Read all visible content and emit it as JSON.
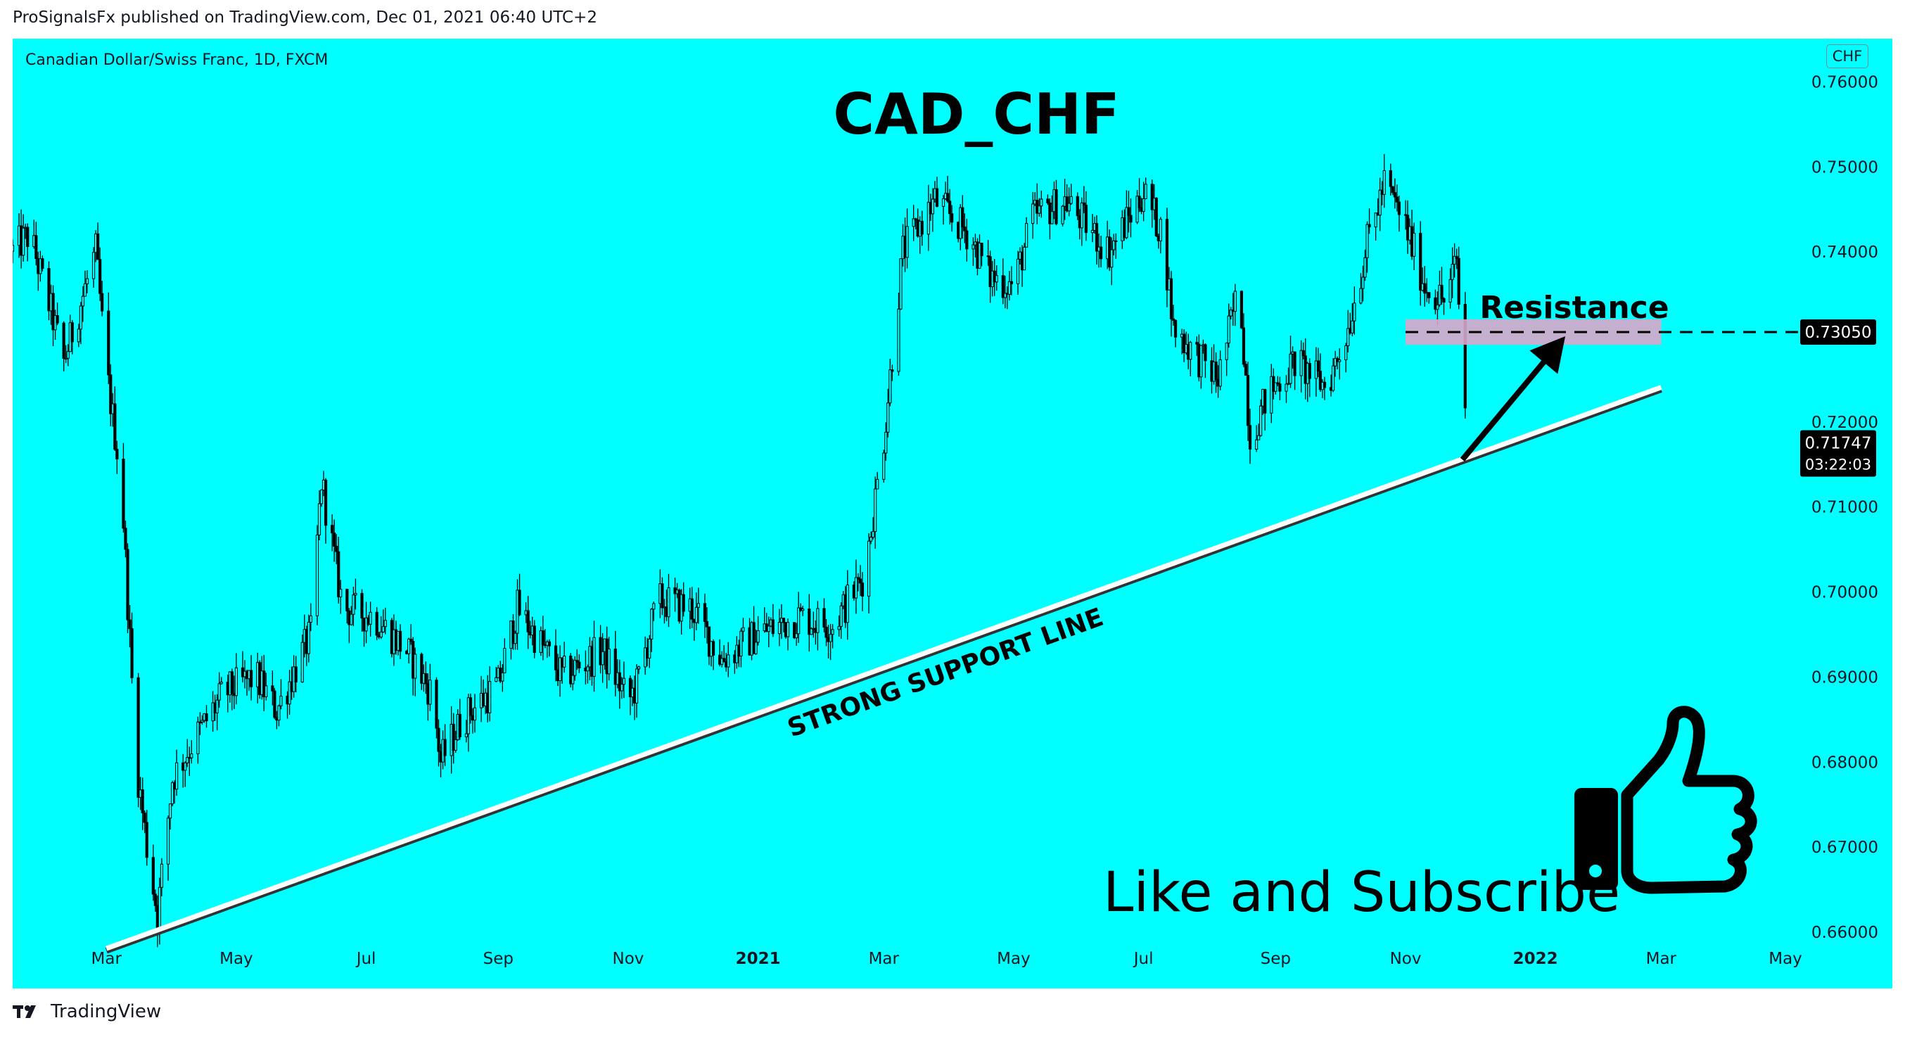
{
  "header": {
    "attribution": "ProSignalsFx published on TradingView.com, Dec 01, 2021 06:40 UTC+2"
  },
  "chart": {
    "symbol_title": "Canadian Dollar/Swiss Franc, 1D, FXCM",
    "currency_badge": "CHF",
    "background_color": "#00ffff"
  },
  "footer": {
    "brand": "TradingView",
    "logo_icon": "tradingview-logo-icon"
  },
  "chart_data": {
    "type": "candlestick",
    "title": "CAD_CHF",
    "annotations": {
      "support_label": "STRONG SUPPORT LINE",
      "resistance_label": "Resistance",
      "cta_text": "Like and Subscribe",
      "cta_icon": "thumbs-up-icon"
    },
    "y_axis": {
      "ylim": [
        0.6533,
        0.765
      ],
      "ticks": [
        0.76,
        0.75,
        0.74,
        0.72,
        0.71,
        0.7,
        0.69,
        0.68,
        0.67,
        0.66
      ],
      "tick_labels": [
        "0.76000",
        "0.75000",
        "0.74000",
        "0.72000",
        "0.71000",
        "0.70000",
        "0.69000",
        "0.68000",
        "0.67000",
        "0.66000"
      ],
      "position": "right"
    },
    "x_axis": {
      "range": [
        "2020-01-17",
        "2022-05-01"
      ],
      "ticks": [
        {
          "date": "2020-03-01",
          "label": "Mar",
          "bold": false
        },
        {
          "date": "2020-05-01",
          "label": "May",
          "bold": false
        },
        {
          "date": "2020-07-01",
          "label": "Jul",
          "bold": false
        },
        {
          "date": "2020-09-01",
          "label": "Sep",
          "bold": false
        },
        {
          "date": "2020-11-01",
          "label": "Nov",
          "bold": false
        },
        {
          "date": "2021-01-01",
          "label": "2021",
          "bold": true
        },
        {
          "date": "2021-03-01",
          "label": "Mar",
          "bold": false
        },
        {
          "date": "2021-05-01",
          "label": "May",
          "bold": false
        },
        {
          "date": "2021-07-01",
          "label": "Jul",
          "bold": false
        },
        {
          "date": "2021-09-01",
          "label": "Sep",
          "bold": false
        },
        {
          "date": "2021-11-01",
          "label": "Nov",
          "bold": false
        },
        {
          "date": "2022-01-01",
          "label": "2022",
          "bold": true
        },
        {
          "date": "2022-03-01",
          "label": "Mar",
          "bold": false
        },
        {
          "date": "2022-05-01",
          "label": "May",
          "bold": false
        }
      ]
    },
    "price_path": [
      {
        "date": "2020-01-17",
        "price": 0.74
      },
      {
        "date": "2020-01-25",
        "price": 0.742
      },
      {
        "date": "2020-02-05",
        "price": 0.732
      },
      {
        "date": "2020-02-10",
        "price": 0.727
      },
      {
        "date": "2020-02-25",
        "price": 0.74
      },
      {
        "date": "2020-03-01",
        "price": 0.726
      },
      {
        "date": "2020-03-08",
        "price": 0.713
      },
      {
        "date": "2020-03-15",
        "price": 0.68
      },
      {
        "date": "2020-03-20",
        "price": 0.67
      },
      {
        "date": "2020-03-25",
        "price": 0.662
      },
      {
        "date": "2020-04-01",
        "price": 0.678
      },
      {
        "date": "2020-04-10",
        "price": 0.682
      },
      {
        "date": "2020-04-25",
        "price": 0.688
      },
      {
        "date": "2020-05-10",
        "price": 0.69
      },
      {
        "date": "2020-05-20",
        "price": 0.686
      },
      {
        "date": "2020-06-05",
        "price": 0.695
      },
      {
        "date": "2020-06-10",
        "price": 0.713
      },
      {
        "date": "2020-06-20",
        "price": 0.698
      },
      {
        "date": "2020-07-05",
        "price": 0.697
      },
      {
        "date": "2020-07-20",
        "price": 0.693
      },
      {
        "date": "2020-08-01",
        "price": 0.688
      },
      {
        "date": "2020-08-05",
        "price": 0.68
      },
      {
        "date": "2020-08-15",
        "price": 0.685
      },
      {
        "date": "2020-09-01",
        "price": 0.689
      },
      {
        "date": "2020-09-10",
        "price": 0.698
      },
      {
        "date": "2020-10-01",
        "price": 0.69
      },
      {
        "date": "2020-10-20",
        "price": 0.693
      },
      {
        "date": "2020-11-01",
        "price": 0.687
      },
      {
        "date": "2020-11-05",
        "price": 0.689
      },
      {
        "date": "2020-11-15",
        "price": 0.699
      },
      {
        "date": "2020-12-01",
        "price": 0.698
      },
      {
        "date": "2020-12-15",
        "price": 0.692
      },
      {
        "date": "2021-01-01",
        "price": 0.695
      },
      {
        "date": "2021-01-20",
        "price": 0.697
      },
      {
        "date": "2021-02-05",
        "price": 0.696
      },
      {
        "date": "2021-02-20",
        "price": 0.702
      },
      {
        "date": "2021-03-01",
        "price": 0.718
      },
      {
        "date": "2021-03-10",
        "price": 0.74
      },
      {
        "date": "2021-03-25",
        "price": 0.746
      },
      {
        "date": "2021-04-10",
        "price": 0.742
      },
      {
        "date": "2021-04-20",
        "price": 0.737
      },
      {
        "date": "2021-05-01",
        "price": 0.736
      },
      {
        "date": "2021-05-10",
        "price": 0.744
      },
      {
        "date": "2021-05-25",
        "price": 0.746
      },
      {
        "date": "2021-06-15",
        "price": 0.74
      },
      {
        "date": "2021-07-01",
        "price": 0.747
      },
      {
        "date": "2021-07-10",
        "price": 0.742
      },
      {
        "date": "2021-07-15",
        "price": 0.731
      },
      {
        "date": "2021-07-25",
        "price": 0.728
      },
      {
        "date": "2021-08-05",
        "price": 0.725
      },
      {
        "date": "2021-08-15",
        "price": 0.736
      },
      {
        "date": "2021-08-20",
        "price": 0.718
      },
      {
        "date": "2021-08-28",
        "price": 0.723
      },
      {
        "date": "2021-09-10",
        "price": 0.727
      },
      {
        "date": "2021-09-25",
        "price": 0.724
      },
      {
        "date": "2021-10-05",
        "price": 0.731
      },
      {
        "date": "2021-10-15",
        "price": 0.742
      },
      {
        "date": "2021-10-22",
        "price": 0.748
      },
      {
        "date": "2021-11-01",
        "price": 0.743
      },
      {
        "date": "2021-11-10",
        "price": 0.736
      },
      {
        "date": "2021-11-20",
        "price": 0.734
      },
      {
        "date": "2021-11-25",
        "price": 0.739
      },
      {
        "date": "2021-11-27",
        "price": 0.729
      },
      {
        "date": "2021-11-30",
        "price": 0.7175
      }
    ],
    "levels": {
      "resistance_price": 0.7305,
      "resistance_price_label": "0.73050",
      "resistance_zone": [
        0.729,
        0.732
      ],
      "current_price": 0.71747,
      "current_price_label": "0.71747",
      "countdown": "03:22:03"
    },
    "support_line": {
      "start": {
        "date": "2020-03-01",
        "price": 0.658
      },
      "end": {
        "date": "2022-03-01",
        "price": 0.724
      }
    },
    "arrow": {
      "from": {
        "date": "2021-12-01",
        "price": 0.7155
      },
      "to": {
        "date": "2022-01-15",
        "price": 0.73
      }
    },
    "colors": {
      "background": "#00ffff",
      "candles": "#000000",
      "support_line": "#ffffff",
      "resistance_zone": "#d9a6c9",
      "price_tag_bg": "#000000",
      "price_tag_text": "#ffffff"
    },
    "grid": false,
    "legend": "none"
  }
}
